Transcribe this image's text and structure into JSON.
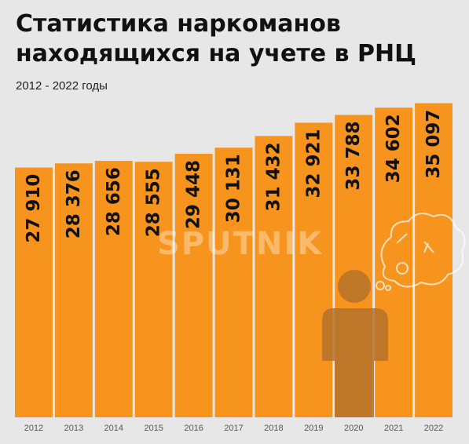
{
  "header": {
    "title": "Статистика наркоманов находящихся на учете в РНЦ",
    "subtitle": "2012 - 2022 годы"
  },
  "watermark": "SPUTNIK",
  "colors": {
    "bar": "#f7941d",
    "background": "#e7e7e7",
    "label": "#111111",
    "axis_label": "#555555",
    "figure": "#b5722a"
  },
  "icons": [
    "person-icon",
    "thought-bubble-icon"
  ],
  "chart_data": {
    "type": "bar",
    "title": "Статистика наркоманов находящихся на учете в РНЦ",
    "subtitle": "2012 - 2022 годы",
    "categories": [
      "2012",
      "2013",
      "2014",
      "2015",
      "2016",
      "2017",
      "2018",
      "2019",
      "2020",
      "2021",
      "2022"
    ],
    "values": [
      27910,
      28376,
      28656,
      28555,
      29448,
      30131,
      31432,
      32921,
      33788,
      34602,
      35097
    ],
    "value_labels": [
      "27 910",
      "28 376",
      "28 656",
      "28 555",
      "29 448",
      "30 131",
      "31 432",
      "32 921",
      "33 788",
      "34 602",
      "35 097"
    ],
    "ylim": [
      0,
      35500
    ],
    "grid": false,
    "legend": "none"
  }
}
